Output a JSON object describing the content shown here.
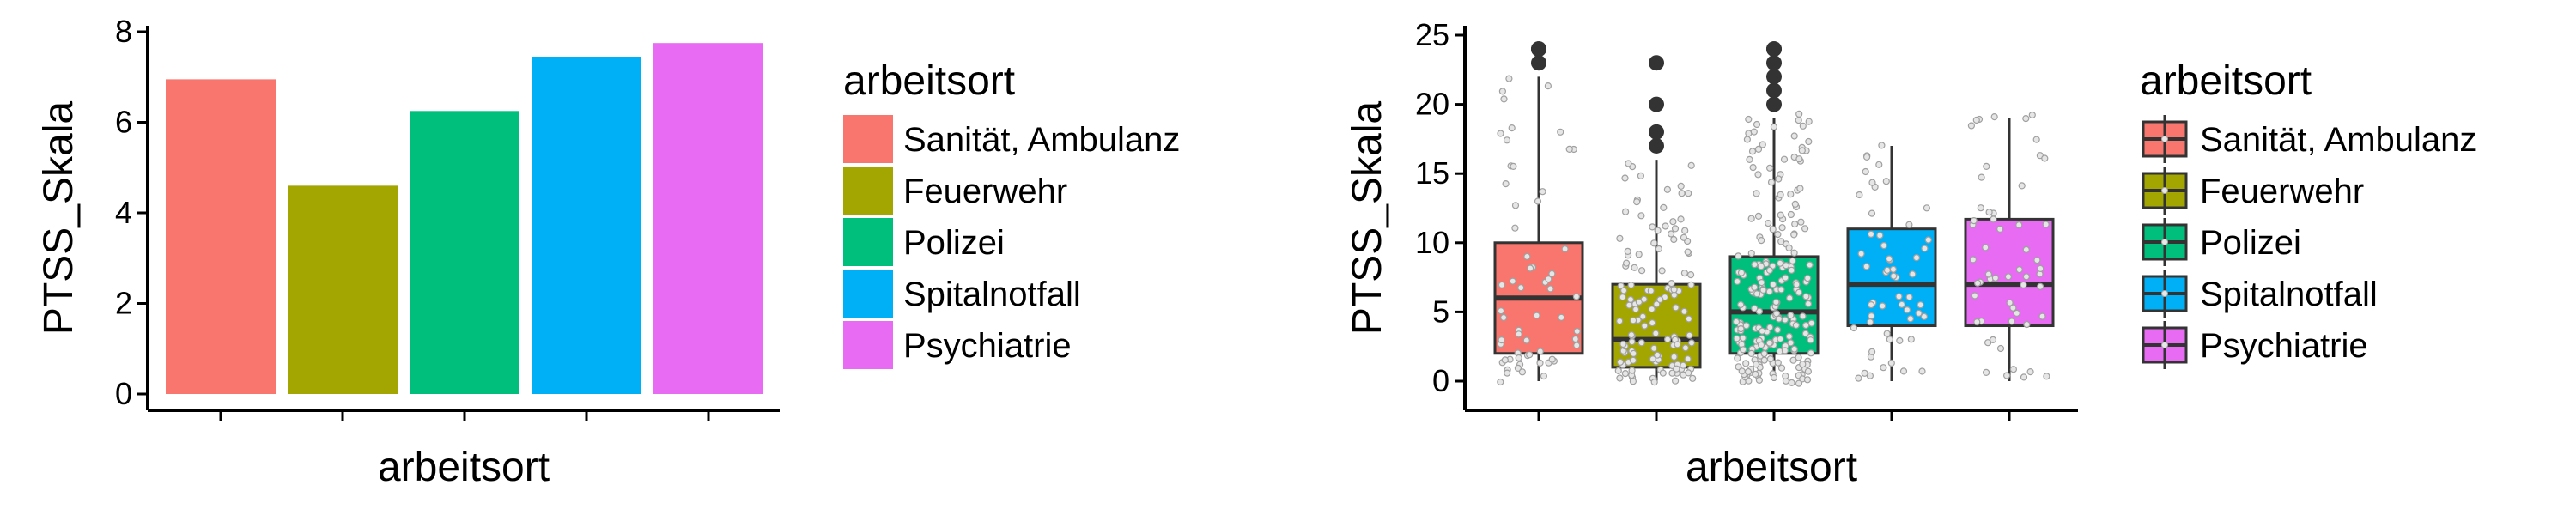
{
  "chart_data": [
    {
      "type": "bar",
      "xlabel": "arbeitsort",
      "ylabel": "PTSS_Skala",
      "ylim": [
        0,
        8
      ],
      "yticks": [
        0,
        2,
        4,
        6,
        8
      ],
      "grid": false,
      "legend_position": "right",
      "legend_title": "arbeitsort",
      "categories": [
        "Sanität, Ambulanz",
        "Feuerwehr",
        "Polizei",
        "Spitalnotfall",
        "Psychiatrie"
      ],
      "values": [
        6.95,
        4.6,
        6.25,
        7.45,
        7.75
      ],
      "colors": [
        "#F8766D",
        "#A3A500",
        "#00BF7D",
        "#00B0F6",
        "#E76BF3"
      ]
    },
    {
      "type": "box",
      "xlabel": "arbeitsort",
      "ylabel": "PTSS_Skala",
      "ylim": [
        -1.5,
        25
      ],
      "yticks": [
        0,
        5,
        10,
        15,
        20,
        25
      ],
      "grid": false,
      "legend_position": "right",
      "legend_title": "arbeitsort",
      "categories": [
        "Sanität, Ambulanz",
        "Feuerwehr",
        "Polizei",
        "Spitalnotfall",
        "Psychiatrie"
      ],
      "colors": [
        "#F8766D",
        "#A3A500",
        "#00BF7D",
        "#00B0F6",
        "#E76BF3"
      ],
      "boxes": [
        {
          "min": 0,
          "q1": 2,
          "median": 6,
          "q3": 10,
          "max": 22,
          "outliers": [
            23,
            24,
            24
          ]
        },
        {
          "min": 0,
          "q1": 1,
          "median": 3,
          "q3": 7,
          "max": 16,
          "outliers": [
            17,
            18,
            20,
            23
          ]
        },
        {
          "min": 0,
          "q1": 2,
          "median": 5,
          "q3": 9,
          "max": 19,
          "outliers": [
            20,
            21,
            22,
            23,
            24,
            24
          ]
        },
        {
          "min": 0,
          "q1": 4,
          "median": 7,
          "q3": 11,
          "max": 17,
          "outliers": []
        },
        {
          "min": 0,
          "q1": 4,
          "median": 7,
          "q3": 11.7,
          "max": 19,
          "outliers": []
        }
      ],
      "jitter_counts": [
        60,
        130,
        220,
        55,
        55
      ]
    }
  ]
}
